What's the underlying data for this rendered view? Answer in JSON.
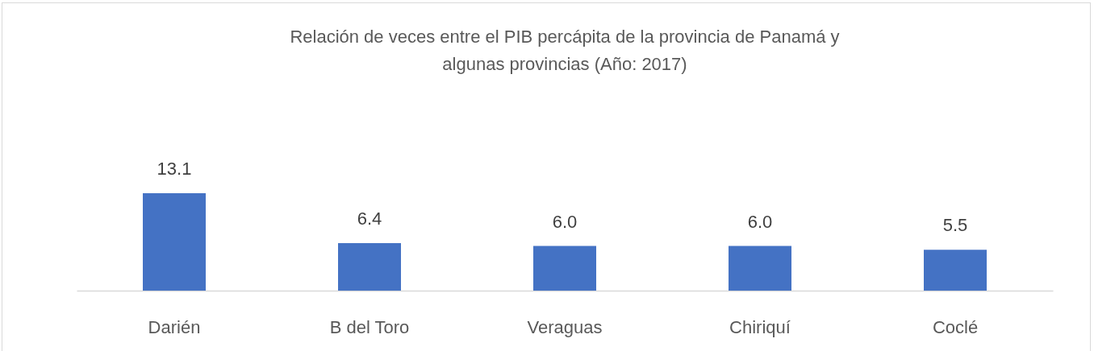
{
  "chart_data": {
    "type": "bar",
    "title": [
      "Relación de veces entre el PIB percápita de  la provincia de Panamá y",
      "algunas provincias (Año: 2017)"
    ],
    "categories": [
      "Darién",
      "B del Toro",
      "Veraguas",
      "Chiriquí",
      "Coclé"
    ],
    "values": [
      13.1,
      6.4,
      6.0,
      6.0,
      5.5
    ],
    "value_labels": [
      "13.1",
      "6.4",
      "6.0",
      "6.0",
      "5.5"
    ],
    "color": "#4472c4"
  }
}
